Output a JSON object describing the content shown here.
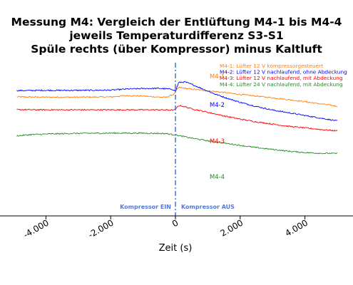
{
  "chart_data": {
    "type": "line",
    "title": [
      "Messung M4: Vergleich der Entlüftung M4-1 bis M4-4",
      "jeweils Temperaturdifferenz S3-S1",
      "Spüle rechts (über Kompressor) minus Kaltluft"
    ],
    "xlabel": "Zeit (s)",
    "ylabel": "",
    "xlim": [
      -4900,
      5000
    ],
    "x_ticks": [
      -4000,
      -2000,
      0,
      2000,
      4000
    ],
    "x_tick_labels": [
      "-4.000",
      "-2.000",
      "0",
      "2.000",
      "4.000"
    ],
    "grid": false,
    "legend_position": "top-right",
    "series": [
      {
        "name": "M4-1: Lüfter 12 V kompressorgesteuert",
        "label": "M4-1",
        "color": "#ff7f0e",
        "x": [
          -4900,
          -4000,
          -3000,
          -2000,
          -1500,
          -1000,
          -600,
          -300,
          -50,
          100,
          400,
          800,
          1500,
          2000,
          2500,
          3000,
          3500,
          4000,
          4500,
          5000
        ],
        "y": [
          7.0,
          6.95,
          6.95,
          7.0,
          7.3,
          7.2,
          7.0,
          6.9,
          7.6,
          9.1,
          8.8,
          8.5,
          8.0,
          7.55,
          7.2,
          6.8,
          6.4,
          5.95,
          5.45,
          4.95
        ]
      },
      {
        "name": "M4-2: Lüfter 12 V nachlaufend, ohne Abdeckung",
        "label": "M4-2",
        "color": "#0000ff",
        "x": [
          -4900,
          -4000,
          -3000,
          -2000,
          -1500,
          -1000,
          -500,
          -100,
          0,
          100,
          300,
          500,
          800,
          1200,
          1600,
          2000,
          2500,
          3000,
          3500,
          4000,
          4500,
          5000
        ],
        "y": [
          8.4,
          8.45,
          8.45,
          8.5,
          8.75,
          8.85,
          8.9,
          8.7,
          8.3,
          10.2,
          10.3,
          9.8,
          8.9,
          7.7,
          6.7,
          5.8,
          4.9,
          4.1,
          3.5,
          2.9,
          2.3,
          1.7
        ]
      },
      {
        "name": "M4-3: Lüfter 12 V nachlaufend, mit Abdeckung",
        "label": "M4-3",
        "color": "#ff0000",
        "x": [
          -4900,
          -4000,
          -3000,
          -2000,
          -1000,
          -500,
          -100,
          0,
          100,
          200,
          500,
          1000,
          1500,
          2000,
          2500,
          3000,
          3500,
          4000,
          4500,
          5000
        ],
        "y": [
          4.2,
          4.15,
          4.15,
          4.15,
          4.15,
          4.15,
          4.1,
          4.2,
          5.1,
          5.0,
          4.4,
          3.6,
          2.8,
          2.1,
          1.5,
          1.0,
          0.5,
          0.15,
          -0.2,
          -0.5
        ]
      },
      {
        "name": "M4-4: Lüfter 24 V nachlaufend, mit Abdeckung",
        "label": "M4-4",
        "color": "#228b22",
        "x": [
          -4900,
          -4500,
          -4000,
          -3000,
          -2000,
          -1000,
          -300,
          0,
          500,
          1000,
          1500,
          2000,
          2500,
          3000,
          3500,
          4000,
          4500,
          5000
        ],
        "y": [
          -1.6,
          -1.35,
          -1.2,
          -1.05,
          -1.0,
          -1.0,
          -1.1,
          -1.4,
          -2.1,
          -2.7,
          -3.2,
          -3.7,
          -4.2,
          -4.6,
          -5.0,
          -5.3,
          -5.45,
          -5.5
        ]
      }
    ],
    "annotations": [
      {
        "text": "Kompressor EIN",
        "x": 0,
        "side": "left"
      },
      {
        "text": "Kompressor AUS",
        "x": 0,
        "side": "right"
      }
    ],
    "vline_x": 0
  }
}
